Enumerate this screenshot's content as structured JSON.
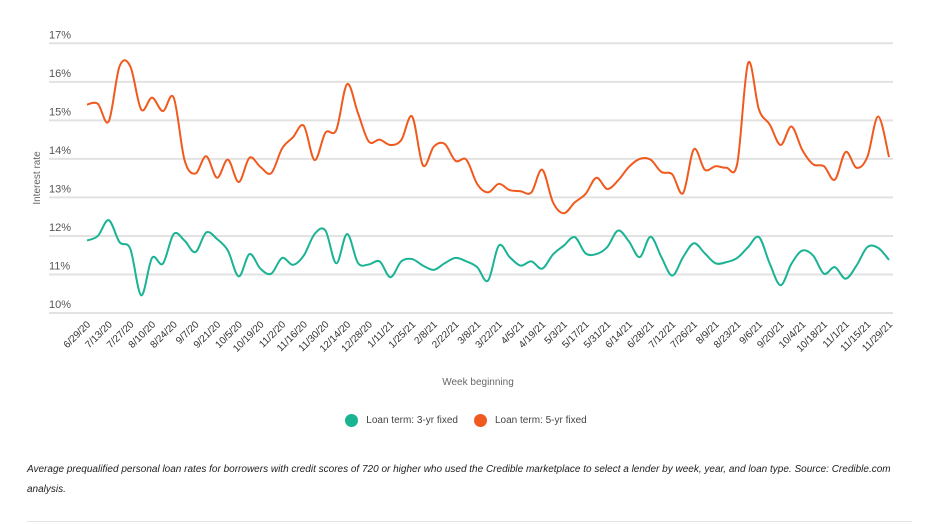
{
  "chart_data": {
    "type": "line",
    "title": "",
    "xlabel": "Week beginning",
    "ylabel": "Interest rate",
    "ylim": [
      10,
      17
    ],
    "yticks": [
      "10%",
      "11%",
      "12%",
      "13%",
      "14%",
      "15%",
      "16%",
      "17%"
    ],
    "grid": true,
    "legend_position": "bottom-center",
    "x_tick_labels": [
      "6/29/20",
      "7/13/20",
      "7/27/20",
      "8/10/20",
      "8/24/20",
      "9/7/20",
      "9/21/20",
      "10/5/20",
      "10/19/20",
      "11/2/20",
      "11/16/20",
      "11/30/20",
      "12/14/20",
      "12/28/20",
      "1/11/21",
      "1/25/21",
      "2/8/21",
      "2/22/21",
      "3/8/21",
      "3/22/21",
      "4/5/21",
      "4/19/21",
      "5/3/21",
      "5/17/21",
      "5/31/21",
      "6/14/21",
      "6/28/21",
      "7/12/21",
      "7/26/21",
      "8/9/21",
      "8/23/21",
      "9/6/21",
      "9/20/21",
      "10/4/21",
      "10/18/21",
      "11/1/21",
      "11/15/21",
      "11/29/21"
    ],
    "weeks_count": 75,
    "series": [
      {
        "name": "Loan term: 3-yr fixed",
        "color": "#1ab394",
        "values": [
          11.88,
          12.0,
          12.41,
          11.84,
          11.66,
          10.46,
          11.43,
          11.28,
          12.05,
          11.88,
          11.58,
          12.09,
          11.92,
          11.62,
          10.95,
          11.53,
          11.15,
          11.02,
          11.43,
          11.25,
          11.49,
          12.05,
          12.14,
          11.29,
          12.05,
          11.3,
          11.26,
          11.34,
          10.93,
          11.34,
          11.4,
          11.23,
          11.12,
          11.29,
          11.43,
          11.34,
          11.19,
          10.84,
          11.75,
          11.45,
          11.23,
          11.34,
          11.15,
          11.52,
          11.75,
          11.97,
          11.55,
          11.53,
          11.71,
          12.14,
          11.86,
          11.45,
          11.98,
          11.45,
          10.97,
          11.45,
          11.81,
          11.55,
          11.29,
          11.32,
          11.43,
          11.71,
          11.97,
          11.28,
          10.72,
          11.28,
          11.62,
          11.49,
          11.02,
          11.19,
          10.89,
          11.23,
          11.71,
          11.69,
          11.38
        ]
      },
      {
        "name": "Loan term: 5-yr fixed",
        "color": "#f05a1e",
        "values": [
          15.41,
          15.43,
          14.97,
          16.4,
          16.4,
          15.28,
          15.59,
          15.24,
          15.59,
          13.97,
          13.62,
          14.07,
          13.51,
          13.98,
          13.4,
          14.03,
          13.79,
          13.63,
          14.27,
          14.56,
          14.86,
          13.97,
          14.68,
          14.75,
          15.94,
          15.19,
          14.45,
          14.5,
          14.36,
          14.49,
          15.1,
          13.83,
          14.32,
          14.39,
          13.95,
          13.98,
          13.35,
          13.13,
          13.35,
          13.19,
          13.16,
          13.13,
          13.72,
          12.87,
          12.59,
          12.87,
          13.09,
          13.51,
          13.22,
          13.44,
          13.79,
          14.0,
          13.98,
          13.66,
          13.6,
          13.11,
          14.25,
          13.72,
          13.81,
          13.77,
          13.88,
          16.49,
          15.28,
          14.89,
          14.36,
          14.84,
          14.23,
          13.86,
          13.81,
          13.46,
          14.18,
          13.77,
          14.05,
          15.1,
          14.05
        ]
      }
    ]
  },
  "caption": "Average prequalified personal loan rates for borrowers with credit scores of 720 or higher who used the Credible marketplace to select a lender by week, year, and loan type. Source: Credible.com analysis."
}
